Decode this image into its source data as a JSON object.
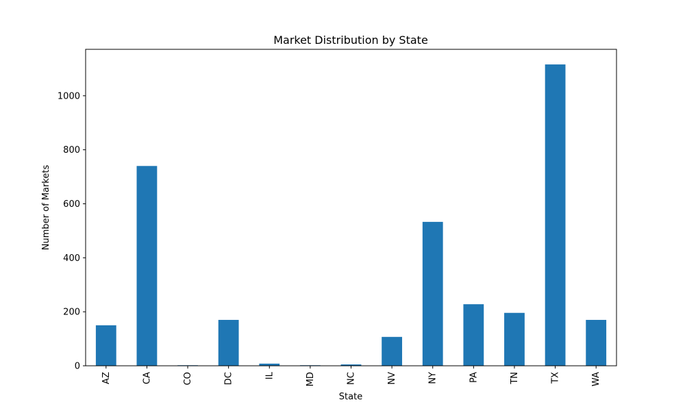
{
  "chart_data": {
    "type": "bar",
    "title": "Market Distribution by State",
    "xlabel": "State",
    "ylabel": "Number of Markets",
    "categories": [
      "AZ",
      "CA",
      "CO",
      "DC",
      "IL",
      "MD",
      "NC",
      "NV",
      "NY",
      "PA",
      "TN",
      "TX",
      "WA"
    ],
    "values": [
      150,
      740,
      2,
      170,
      8,
      2,
      5,
      107,
      533,
      228,
      196,
      1116,
      170
    ],
    "ylim": [
      0,
      1172
    ],
    "yticks": [
      0,
      200,
      400,
      600,
      800,
      1000
    ],
    "grid": false,
    "legend": "none",
    "bar_color": "#1f77b4"
  }
}
